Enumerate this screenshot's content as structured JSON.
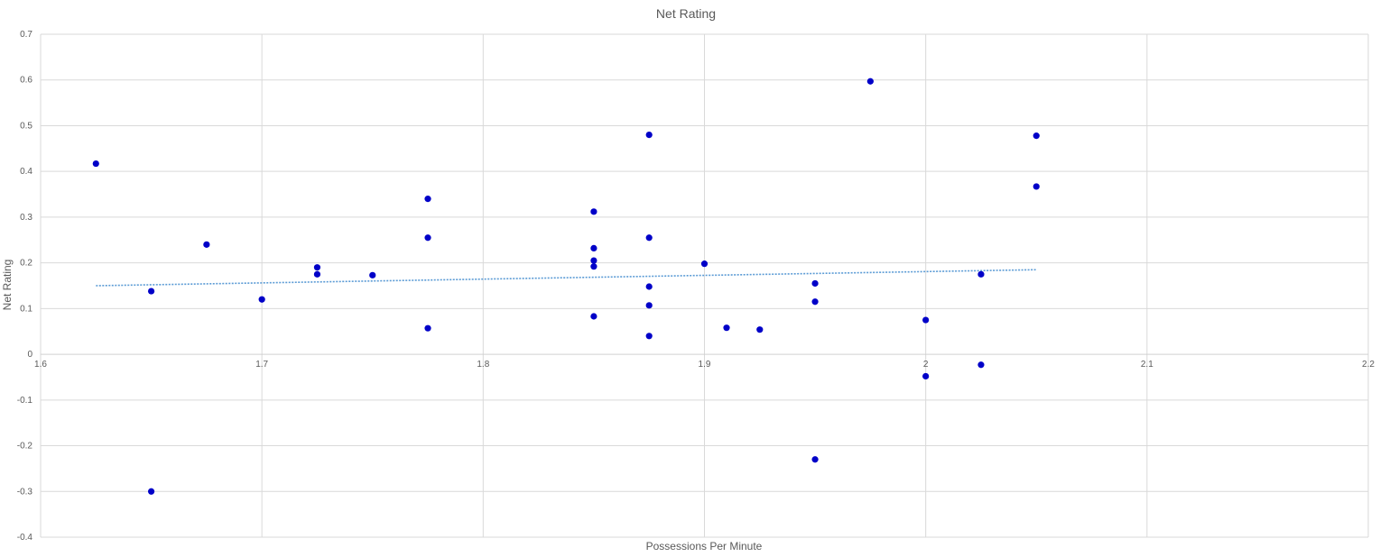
{
  "chart_data": {
    "type": "scatter",
    "title": "Net Rating",
    "xlabel": "Possessions Per Minute",
    "ylabel": "Net Rating",
    "xlim": [
      1.6,
      2.2
    ],
    "ylim": [
      -0.4,
      0.7
    ],
    "x_ticks": [
      "1.6",
      "1.7",
      "1.8",
      "1.9",
      "2",
      "2.1",
      "2.2"
    ],
    "y_ticks": [
      "0.7",
      "0.6",
      "0.5",
      "0.4",
      "0.3",
      "0.2",
      "0.1",
      "0",
      "-0.1",
      "-0.2",
      "-0.3",
      "-0.4"
    ],
    "grid": true,
    "legend": "none",
    "colors": {
      "points": "#0000c8",
      "trendline": "#5b9bd5"
    },
    "trendline": {
      "type": "linear",
      "x_start": 1.625,
      "y_start": 0.15,
      "x_end": 2.05,
      "y_end": 0.185
    },
    "points": [
      {
        "x": 1.625,
        "y": 0.417
      },
      {
        "x": 1.65,
        "y": 0.138
      },
      {
        "x": 1.65,
        "y": -0.3
      },
      {
        "x": 1.675,
        "y": 0.24
      },
      {
        "x": 1.7,
        "y": 0.12
      },
      {
        "x": 1.725,
        "y": 0.19
      },
      {
        "x": 1.725,
        "y": 0.175
      },
      {
        "x": 1.75,
        "y": 0.173
      },
      {
        "x": 1.775,
        "y": 0.34
      },
      {
        "x": 1.775,
        "y": 0.255
      },
      {
        "x": 1.775,
        "y": 0.057
      },
      {
        "x": 1.85,
        "y": 0.312
      },
      {
        "x": 1.85,
        "y": 0.232
      },
      {
        "x": 1.85,
        "y": 0.205
      },
      {
        "x": 1.85,
        "y": 0.192
      },
      {
        "x": 1.85,
        "y": 0.083
      },
      {
        "x": 1.875,
        "y": 0.48
      },
      {
        "x": 1.875,
        "y": 0.255
      },
      {
        "x": 1.875,
        "y": 0.148
      },
      {
        "x": 1.875,
        "y": 0.107
      },
      {
        "x": 1.875,
        "y": 0.04
      },
      {
        "x": 1.9,
        "y": 0.198
      },
      {
        "x": 1.91,
        "y": 0.058
      },
      {
        "x": 1.925,
        "y": 0.054
      },
      {
        "x": 1.95,
        "y": 0.155
      },
      {
        "x": 1.95,
        "y": 0.115
      },
      {
        "x": 1.95,
        "y": -0.23
      },
      {
        "x": 1.975,
        "y": 0.597
      },
      {
        "x": 2.0,
        "y": 0.075
      },
      {
        "x": 2.0,
        "y": -0.048
      },
      {
        "x": 2.025,
        "y": 0.175
      },
      {
        "x": 2.025,
        "y": -0.023
      },
      {
        "x": 2.05,
        "y": 0.478
      },
      {
        "x": 2.05,
        "y": 0.367
      }
    ]
  }
}
